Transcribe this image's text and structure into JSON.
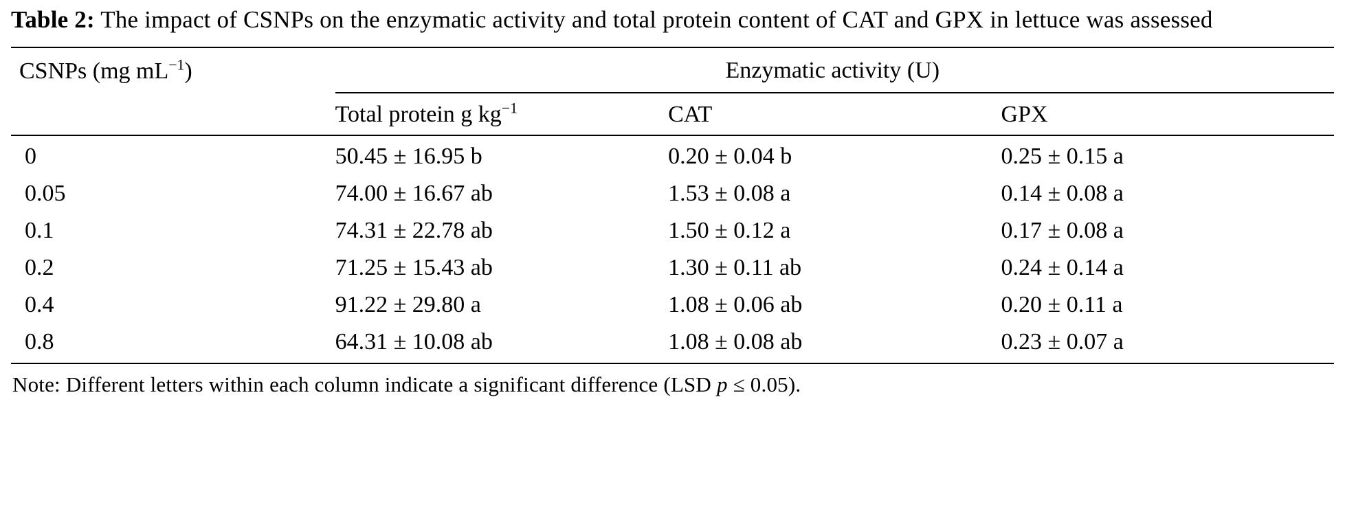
{
  "caption": {
    "label": "Table 2:",
    "text": " The impact of CSNPs on the enzymatic activity and total protein content of CAT and GPX in lettuce was assessed"
  },
  "headers": {
    "csnps": {
      "base": "CSNPs (mg mL",
      "sup": "−1",
      "close": ")"
    },
    "group": "Enzymatic activity (U)",
    "protein": {
      "base": "Total protein g kg",
      "sup": "−1"
    },
    "cat": "CAT",
    "gpx": "GPX"
  },
  "rows": [
    {
      "csnp": "0",
      "protein": "50.45 ± 16.95 b",
      "cat": "0.20 ± 0.04 b",
      "gpx": "0.25 ± 0.15 a"
    },
    {
      "csnp": "0.05",
      "protein": "74.00 ± 16.67 ab",
      "cat": "1.53 ± 0.08 a",
      "gpx": "0.14 ± 0.08 a"
    },
    {
      "csnp": "0.1",
      "protein": "74.31 ± 22.78 ab",
      "cat": "1.50 ± 0.12 a",
      "gpx": "0.17 ± 0.08 a"
    },
    {
      "csnp": "0.2",
      "protein": "71.25 ± 15.43 ab",
      "cat": "1.30 ± 0.11 ab",
      "gpx": "0.24 ± 0.14 a"
    },
    {
      "csnp": "0.4",
      "protein": "91.22 ± 29.80 a",
      "cat": "1.08 ± 0.06 ab",
      "gpx": "0.20 ± 0.11 a"
    },
    {
      "csnp": "0.8",
      "protein": "64.31 ± 10.08 ab",
      "cat": "1.08 ± 0.08 ab",
      "gpx": "0.23 ± 0.07 a"
    }
  ],
  "note": {
    "prefix": "Note: Different letters within each column indicate a significant difference (LSD ",
    "p": "p",
    "suffix": " ≤ 0.05)."
  }
}
